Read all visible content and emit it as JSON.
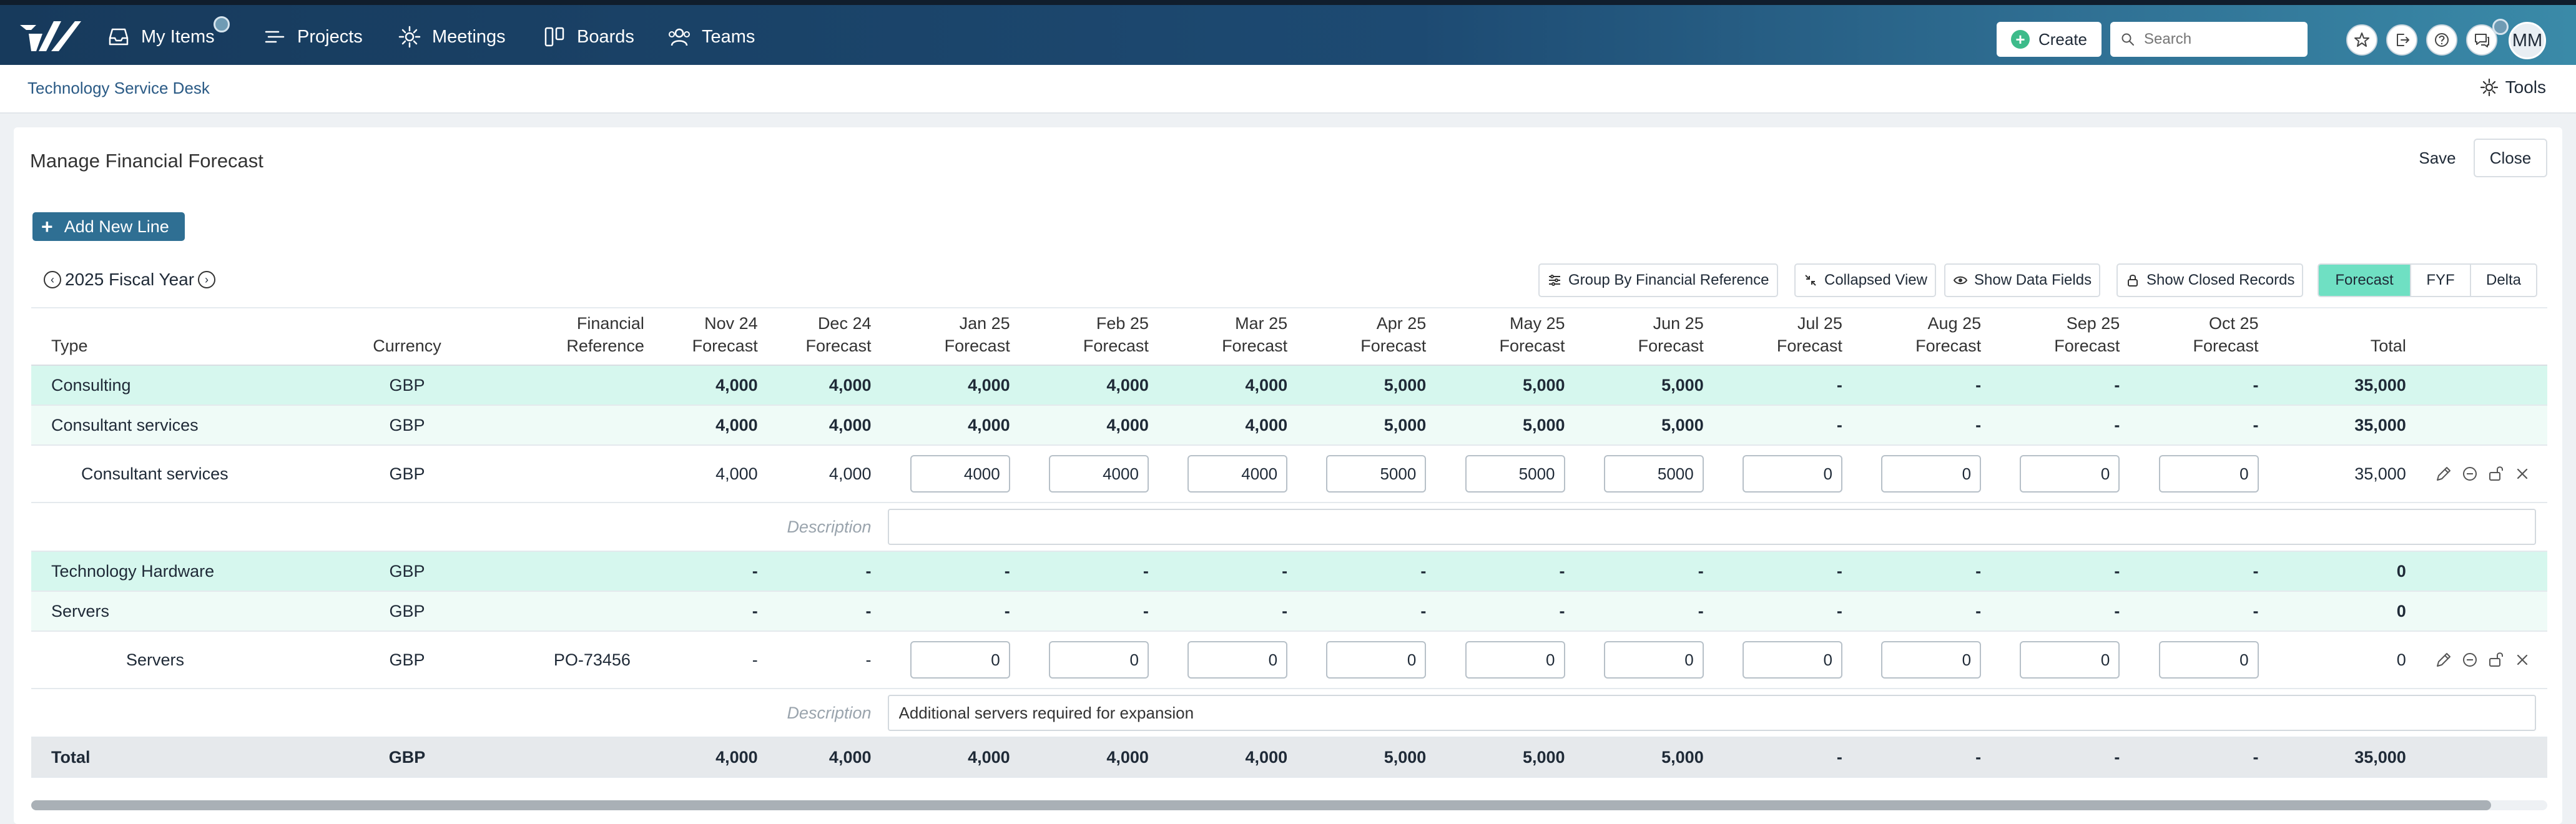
{
  "nav": {
    "items": [
      {
        "label": "My Items",
        "icon": "inbox-icon"
      },
      {
        "label": "Projects",
        "icon": "projects-icon"
      },
      {
        "label": "Meetings",
        "icon": "meetings-icon"
      },
      {
        "label": "Boards",
        "icon": "boards-icon"
      },
      {
        "label": "Teams",
        "icon": "teams-icon"
      }
    ],
    "create_label": "Create",
    "search_placeholder": "Search",
    "avatar_initials": "MM"
  },
  "breadcrumb": "Technology Service Desk",
  "tools_label": "Tools",
  "page": {
    "title": "Manage Financial Forecast",
    "save_label": "Save",
    "close_label": "Close",
    "add_line_label": "Add New Line",
    "fiscal_year": "2025 Fiscal Year"
  },
  "toolbar": {
    "group_by": "Group By Financial Reference",
    "collapsed_view": "Collapsed View",
    "show_data_fields": "Show Data Fields",
    "show_closed_records": "Show Closed Records",
    "views": [
      "Forecast",
      "FYF",
      "Delta"
    ],
    "active_view": "Forecast"
  },
  "table": {
    "headers": {
      "type": "Type",
      "currency": "Currency",
      "finref_line1": "Financial",
      "finref_line2": "Reference",
      "months": [
        "Nov 24",
        "Dec 24",
        "Jan 25",
        "Feb 25",
        "Mar 25",
        "Apr 25",
        "May 25",
        "Jun 25",
        "Jul 25",
        "Aug 25",
        "Sep 25",
        "Oct 25"
      ],
      "month_suffix": "Forecast",
      "total": "Total"
    },
    "rows": [
      {
        "kind": "group",
        "type": "Consulting",
        "currency": "GBP",
        "ref": "",
        "values": [
          "4,000",
          "4,000",
          "4,000",
          "4,000",
          "4,000",
          "5,000",
          "5,000",
          "5,000",
          "-",
          "-",
          "-",
          "-"
        ],
        "total": "35,000"
      },
      {
        "kind": "sub",
        "type": "Consultant services",
        "currency": "GBP",
        "ref": "",
        "values": [
          "4,000",
          "4,000",
          "4,000",
          "4,000",
          "4,000",
          "5,000",
          "5,000",
          "5,000",
          "-",
          "-",
          "-",
          "-"
        ],
        "total": "35,000"
      },
      {
        "kind": "line",
        "type": "Consultant services",
        "currency": "GBP",
        "ref": "",
        "values": [
          "4,000",
          "4,000",
          "4000",
          "4000",
          "4000",
          "5000",
          "5000",
          "5000",
          "0",
          "0",
          "0",
          "0"
        ],
        "total": "35,000"
      },
      {
        "kind": "desc",
        "label": "Description",
        "value": ""
      },
      {
        "kind": "group",
        "type": "Technology Hardware",
        "currency": "GBP",
        "ref": "",
        "values": [
          "-",
          "-",
          "-",
          "-",
          "-",
          "-",
          "-",
          "-",
          "-",
          "-",
          "-",
          "-"
        ],
        "total": "0"
      },
      {
        "kind": "sub",
        "type": "Servers",
        "currency": "GBP",
        "ref": "",
        "values": [
          "-",
          "-",
          "-",
          "-",
          "-",
          "-",
          "-",
          "-",
          "-",
          "-",
          "-",
          "-"
        ],
        "total": "0"
      },
      {
        "kind": "line",
        "type": "Servers",
        "currency": "GBP",
        "ref": "PO-73456",
        "values": [
          "-",
          "-",
          "0",
          "0",
          "0",
          "0",
          "0",
          "0",
          "0",
          "0",
          "0",
          "0"
        ],
        "total": "0"
      },
      {
        "kind": "desc",
        "label": "Description",
        "value": "Additional servers required for expansion"
      },
      {
        "kind": "total",
        "type": "Total",
        "currency": "GBP",
        "ref": "",
        "values": [
          "4,000",
          "4,000",
          "4,000",
          "4,000",
          "4,000",
          "5,000",
          "5,000",
          "5,000",
          "-",
          "-",
          "-",
          "-"
        ],
        "total": "35,000"
      }
    ]
  },
  "colors": {
    "nav_dark": "#173a5c",
    "accent": "#2f6f93",
    "group_row": "#d6f7ee",
    "sub_row": "#effbf7",
    "active_view": "#6fe0c3",
    "create_icon": "#3dbb8a"
  }
}
